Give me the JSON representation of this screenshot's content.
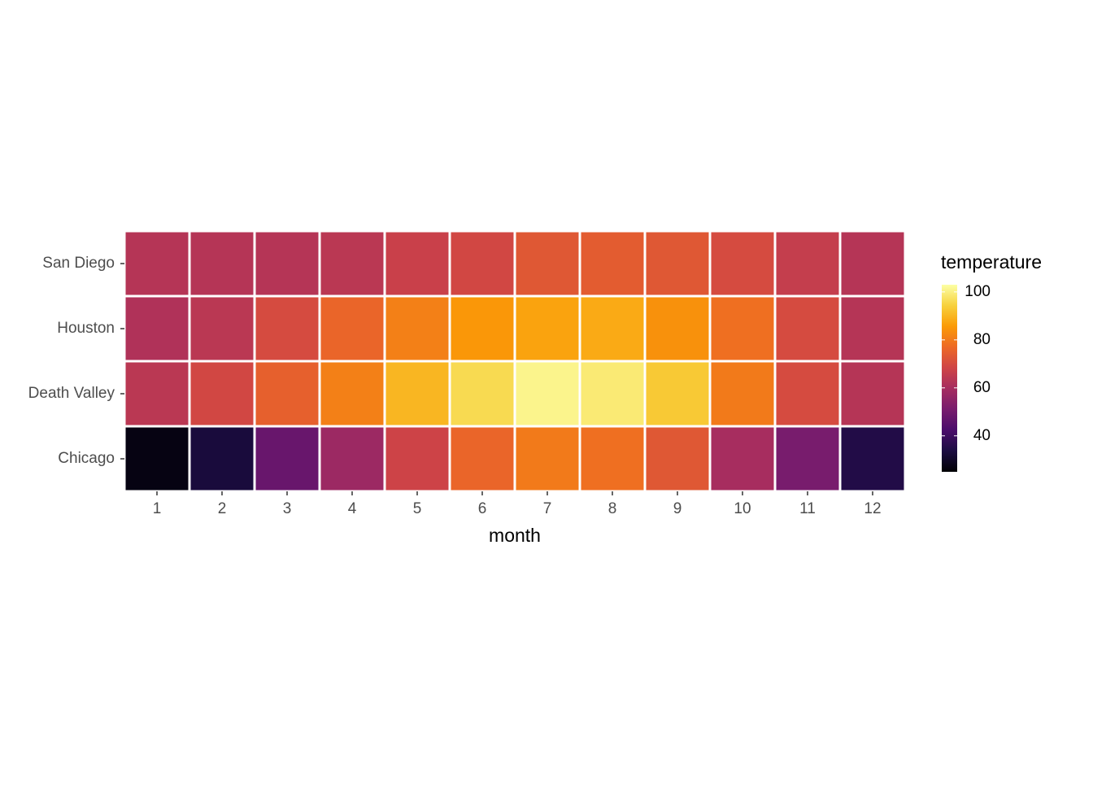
{
  "chart_data": {
    "type": "heatmap",
    "x_label": "month",
    "x": [
      1,
      2,
      3,
      4,
      5,
      6,
      7,
      8,
      9,
      10,
      11,
      12
    ],
    "y": [
      "Chicago",
      "Death Valley",
      "Houston",
      "San Diego"
    ],
    "z": [
      [
        27,
        33,
        48,
        58,
        68,
        76,
        80,
        78,
        73,
        60,
        51,
        35
      ],
      [
        64,
        69,
        75,
        81,
        90,
        96,
        101,
        99,
        93,
        80,
        70,
        63
      ],
      [
        62,
        64,
        70,
        76,
        81,
        85,
        87,
        88,
        84,
        78,
        70,
        63
      ],
      [
        63,
        63,
        63,
        64,
        67,
        69,
        73,
        74,
        73,
        70,
        66,
        63
      ]
    ],
    "legend_title": "temperature",
    "zlim": [
      25,
      103
    ],
    "zticks": [
      40,
      60,
      80,
      100
    ],
    "colors": [
      "#000004",
      "#1b0c41",
      "#4a0c6b",
      "#781c6d",
      "#a52c60",
      "#cf4446",
      "#ed6925",
      "#fb9b06",
      "#f7d13d",
      "#fcffa4"
    ],
    "tile_border": "#ffffff",
    "panel_background": "#ebebeb"
  }
}
